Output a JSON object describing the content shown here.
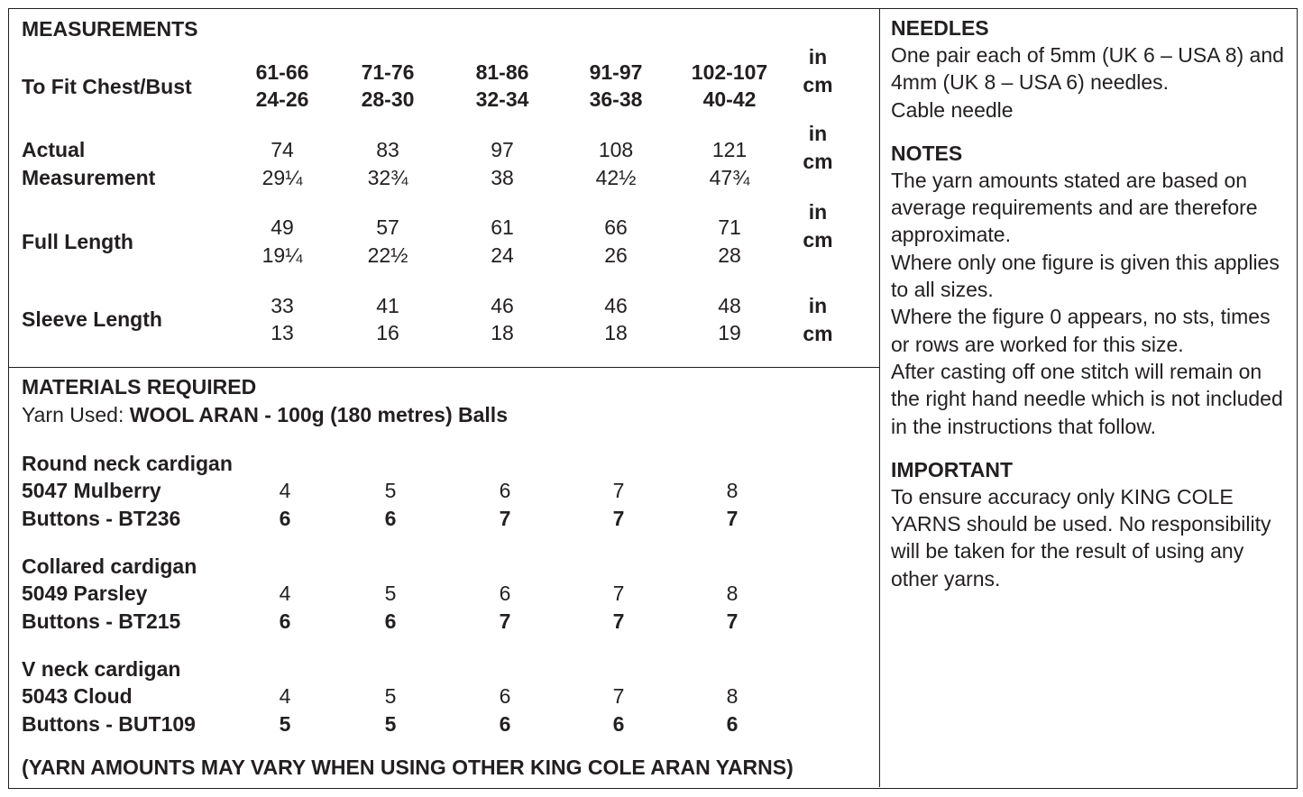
{
  "measurements": {
    "title": "MEASUREMENTS",
    "size_label": "To Fit Chest/Bust",
    "sizes_top": [
      "61-66",
      "71-76",
      "81-86",
      "91-97",
      "102-107"
    ],
    "sizes_bottom": [
      "24-26",
      "28-30",
      "32-34",
      "36-38",
      "40-42"
    ],
    "size_units": [
      "in",
      "cm"
    ],
    "rows": [
      {
        "label": [
          "Actual",
          "Measurement"
        ],
        "top": [
          "74",
          "83",
          "97",
          "108",
          "121"
        ],
        "bottom": [
          "29¼",
          "32¾",
          "38",
          "42½",
          "47¾"
        ],
        "units": [
          "in",
          "cm"
        ]
      },
      {
        "label": [
          "Full Length"
        ],
        "top": [
          "49",
          "57",
          "61",
          "66",
          "71"
        ],
        "bottom": [
          "19¼",
          "22½",
          "24",
          "26",
          "28"
        ],
        "units": [
          "in",
          "cm"
        ]
      },
      {
        "label": [
          "Sleeve Length"
        ],
        "top": [
          "33",
          "41",
          "46",
          "46",
          "48"
        ],
        "bottom": [
          "13",
          "16",
          "18",
          "18",
          "19"
        ],
        "units": [
          "in",
          "cm"
        ]
      }
    ]
  },
  "materials": {
    "title": "MATERIALS REQUIRED",
    "yarn_label": "Yarn Used:",
    "yarn": "WOOL ARAN - 100g (180 metres) Balls",
    "groups": [
      {
        "name": "Round neck cardigan",
        "yarn": "5047 Mulberry",
        "yarn_amounts": [
          "4",
          "5",
          "6",
          "7",
          "8"
        ],
        "buttons": "Buttons - BT236",
        "button_amounts": [
          "6",
          "6",
          "7",
          "7",
          "7"
        ]
      },
      {
        "name": "Collared cardigan",
        "yarn": "5049 Parsley",
        "yarn_amounts": [
          "4",
          "5",
          "6",
          "7",
          "8"
        ],
        "buttons": "Buttons - BT215",
        "button_amounts": [
          "6",
          "6",
          "7",
          "7",
          "7"
        ]
      },
      {
        "name": "V neck cardigan",
        "yarn": "5043 Cloud",
        "yarn_amounts": [
          "4",
          "5",
          "6",
          "7",
          "8"
        ],
        "buttons": "Buttons - BUT109",
        "button_amounts": [
          "5",
          "5",
          "6",
          "6",
          "6"
        ]
      }
    ],
    "note": "(YARN AMOUNTS MAY VARY WHEN USING OTHER KING COLE ARAN YARNS)"
  },
  "needles": {
    "title": "NEEDLES",
    "paragraphs": [
      "One pair each of 5mm (UK 6 – USA 8) and 4mm (UK 8 – USA 6) needles.",
      "Cable needle"
    ]
  },
  "notes": {
    "title": "NOTES",
    "paragraphs": [
      "The yarn amounts stated are based on average requirements and are therefore approximate.",
      "Where only one figure is given this applies to all sizes.",
      "Where the figure 0 appears, no sts, times or rows are worked for this size.",
      "After casting off one stitch will remain on the right hand needle which is not included in the instructions that follow."
    ]
  },
  "important": {
    "title": "IMPORTANT",
    "paragraphs": [
      "To ensure accuracy only KING COLE YARNS should be used. No responsibility will be taken for the result of using any other yarns."
    ]
  }
}
